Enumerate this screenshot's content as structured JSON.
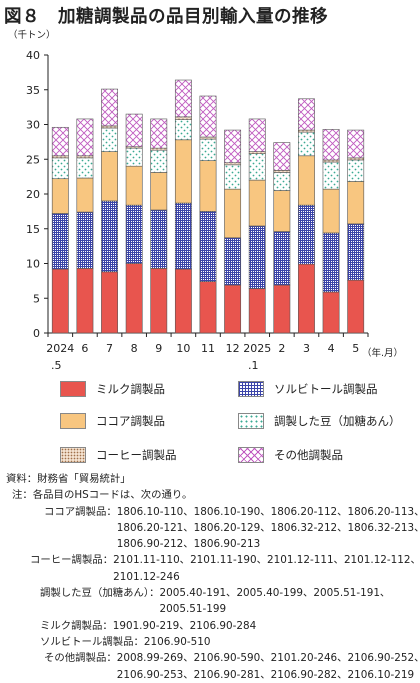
{
  "title": "図８　加糖調製品の品目別輸入量の推移",
  "chart_data": {
    "type": "bar",
    "stacked": true,
    "y_unit": "（千トン）",
    "x_unit": "（年.月）",
    "ylim": [
      0,
      40
    ],
    "yticks": [
      0,
      5,
      10,
      15,
      20,
      25,
      30,
      35,
      40
    ],
    "categories": [
      {
        "top": "2024",
        "bottom": ".5"
      },
      {
        "top": "6",
        "bottom": ""
      },
      {
        "top": "7",
        "bottom": ""
      },
      {
        "top": "8",
        "bottom": ""
      },
      {
        "top": "9",
        "bottom": ""
      },
      {
        "top": "10",
        "bottom": ""
      },
      {
        "top": "11",
        "bottom": ""
      },
      {
        "top": "12",
        "bottom": ""
      },
      {
        "top": "2025",
        "bottom": ".1"
      },
      {
        "top": "2",
        "bottom": ""
      },
      {
        "top": "3",
        "bottom": ""
      },
      {
        "top": "4",
        "bottom": ""
      },
      {
        "top": "5",
        "bottom": ""
      }
    ],
    "series": [
      {
        "name": "ミルク調製品",
        "key": "milk",
        "color": "#e8554e",
        "values": [
          9.2,
          9.3,
          8.8,
          10.0,
          9.3,
          9.2,
          7.4,
          6.9,
          6.4,
          6.9,
          9.9,
          5.9,
          7.6
        ]
      },
      {
        "name": "ソルビトール調製品",
        "key": "sorbitol",
        "color": "#3b44a8",
        "values": [
          8.0,
          8.1,
          10.2,
          8.4,
          8.4,
          9.5,
          10.1,
          6.8,
          9.0,
          7.7,
          8.5,
          8.5,
          8.1
        ]
      },
      {
        "name": "ココア調製品",
        "key": "cocoa",
        "color": "#f8c680",
        "values": [
          5.0,
          4.9,
          7.1,
          5.6,
          5.4,
          9.1,
          7.3,
          7.0,
          6.6,
          5.9,
          7.1,
          6.3,
          6.1
        ]
      },
      {
        "name": "調製した豆（加糖あん）",
        "key": "beans",
        "color": "#8fd3c4",
        "values": [
          3.0,
          2.9,
          3.4,
          2.6,
          3.2,
          2.9,
          3.1,
          3.5,
          3.8,
          2.6,
          3.4,
          3.9,
          3.1
        ]
      },
      {
        "name": "コーヒー調製品",
        "key": "coffee",
        "color": "#c9a07d",
        "values": [
          0.3,
          0.3,
          0.3,
          0.2,
          0.3,
          0.4,
          0.3,
          0.3,
          0.3,
          0.3,
          0.3,
          0.3,
          0.3
        ]
      },
      {
        "name": "その他調製品",
        "key": "other",
        "color": "#c05ac0",
        "values": [
          4.1,
          5.3,
          5.3,
          4.7,
          4.2,
          5.3,
          5.9,
          4.7,
          4.7,
          4.0,
          4.5,
          4.4,
          4.0
        ]
      }
    ]
  },
  "notes": {
    "source": "資料：財務省「貿易統計」",
    "header": "注：各品目のHSコードは、次の通り。",
    "items": [
      {
        "label": "ココア調製品：",
        "lines": [
          "1806.10-110、1806.10-190、1806.20-112、1806.20-113、",
          "1806.20-121、1806.20-129、1806.32-212、1806.32-213、",
          "1806.90-212、1806.90-213"
        ]
      },
      {
        "label": "コーヒー調製品：",
        "lines": [
          "2101.11-110、2101.11-190、2101.12-111、2101.12-112、",
          "2101.12-246"
        ]
      },
      {
        "label": "調製した豆（加糖あん）：",
        "lines": [
          "2005.40-191、2005.40-199、2005.51-191、",
          "2005.51-199"
        ]
      },
      {
        "label": "ミルク調製品：",
        "lines": [
          "1901.90-219、2106.90-284"
        ]
      },
      {
        "label": "ソルビトール調製品：",
        "lines": [
          "2106.90-510"
        ]
      },
      {
        "label": "その他調製品：",
        "lines": [
          "2008.99-269、2106.90-590、2101.20-246、2106.90-252、",
          "2106.90-253、2106.90-281、2106.90-282、2106.10-219"
        ]
      }
    ]
  }
}
